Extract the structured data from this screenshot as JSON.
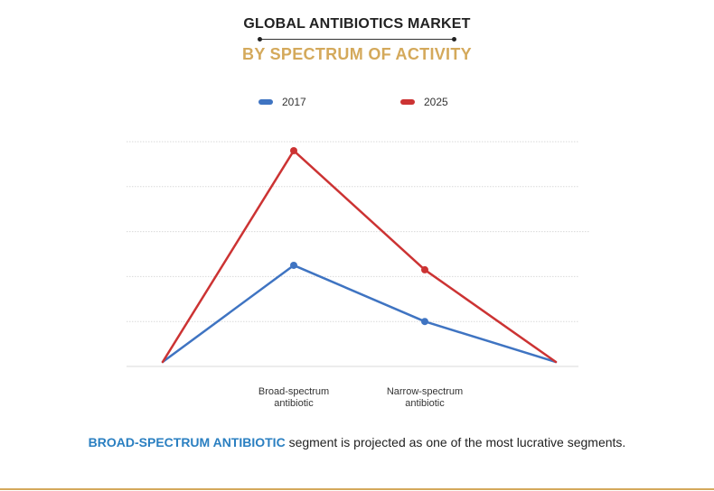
{
  "header": {
    "title": "GLOBAL ANTIBIOTICS MARKET",
    "subtitle": "BY SPECTRUM OF ACTIVITY"
  },
  "footer": {
    "highlight": "BROAD-SPECTRUM ANTIBIOTIC",
    "rest": " segment is projected as one of the most lucrative segments."
  },
  "colors": {
    "accent_gold": "#d4a95b",
    "highlight_blue": "#2a7fc1",
    "grid": "#d9d9d9"
  },
  "chart_data": {
    "type": "line",
    "x": [
      "",
      "Broad-spectrum antibiotic",
      "Narrow-spectrum antibiotic",
      ""
    ],
    "series": [
      {
        "name": "2017",
        "color": "#3f74c2",
        "values": [
          0.1,
          2.25,
          1.0,
          0.1
        ]
      },
      {
        "name": "2025",
        "color": "#cc3333",
        "values": [
          0.1,
          4.8,
          2.15,
          0.1
        ]
      }
    ],
    "markers": [
      false,
      true,
      true,
      false
    ],
    "ylim": [
      0,
      5
    ],
    "gridlines": [
      0,
      1,
      2,
      3,
      4,
      5
    ],
    "grid": true,
    "axis_labels_shown": false,
    "legend_position": "top-center",
    "xlabel": "",
    "ylabel": ""
  }
}
